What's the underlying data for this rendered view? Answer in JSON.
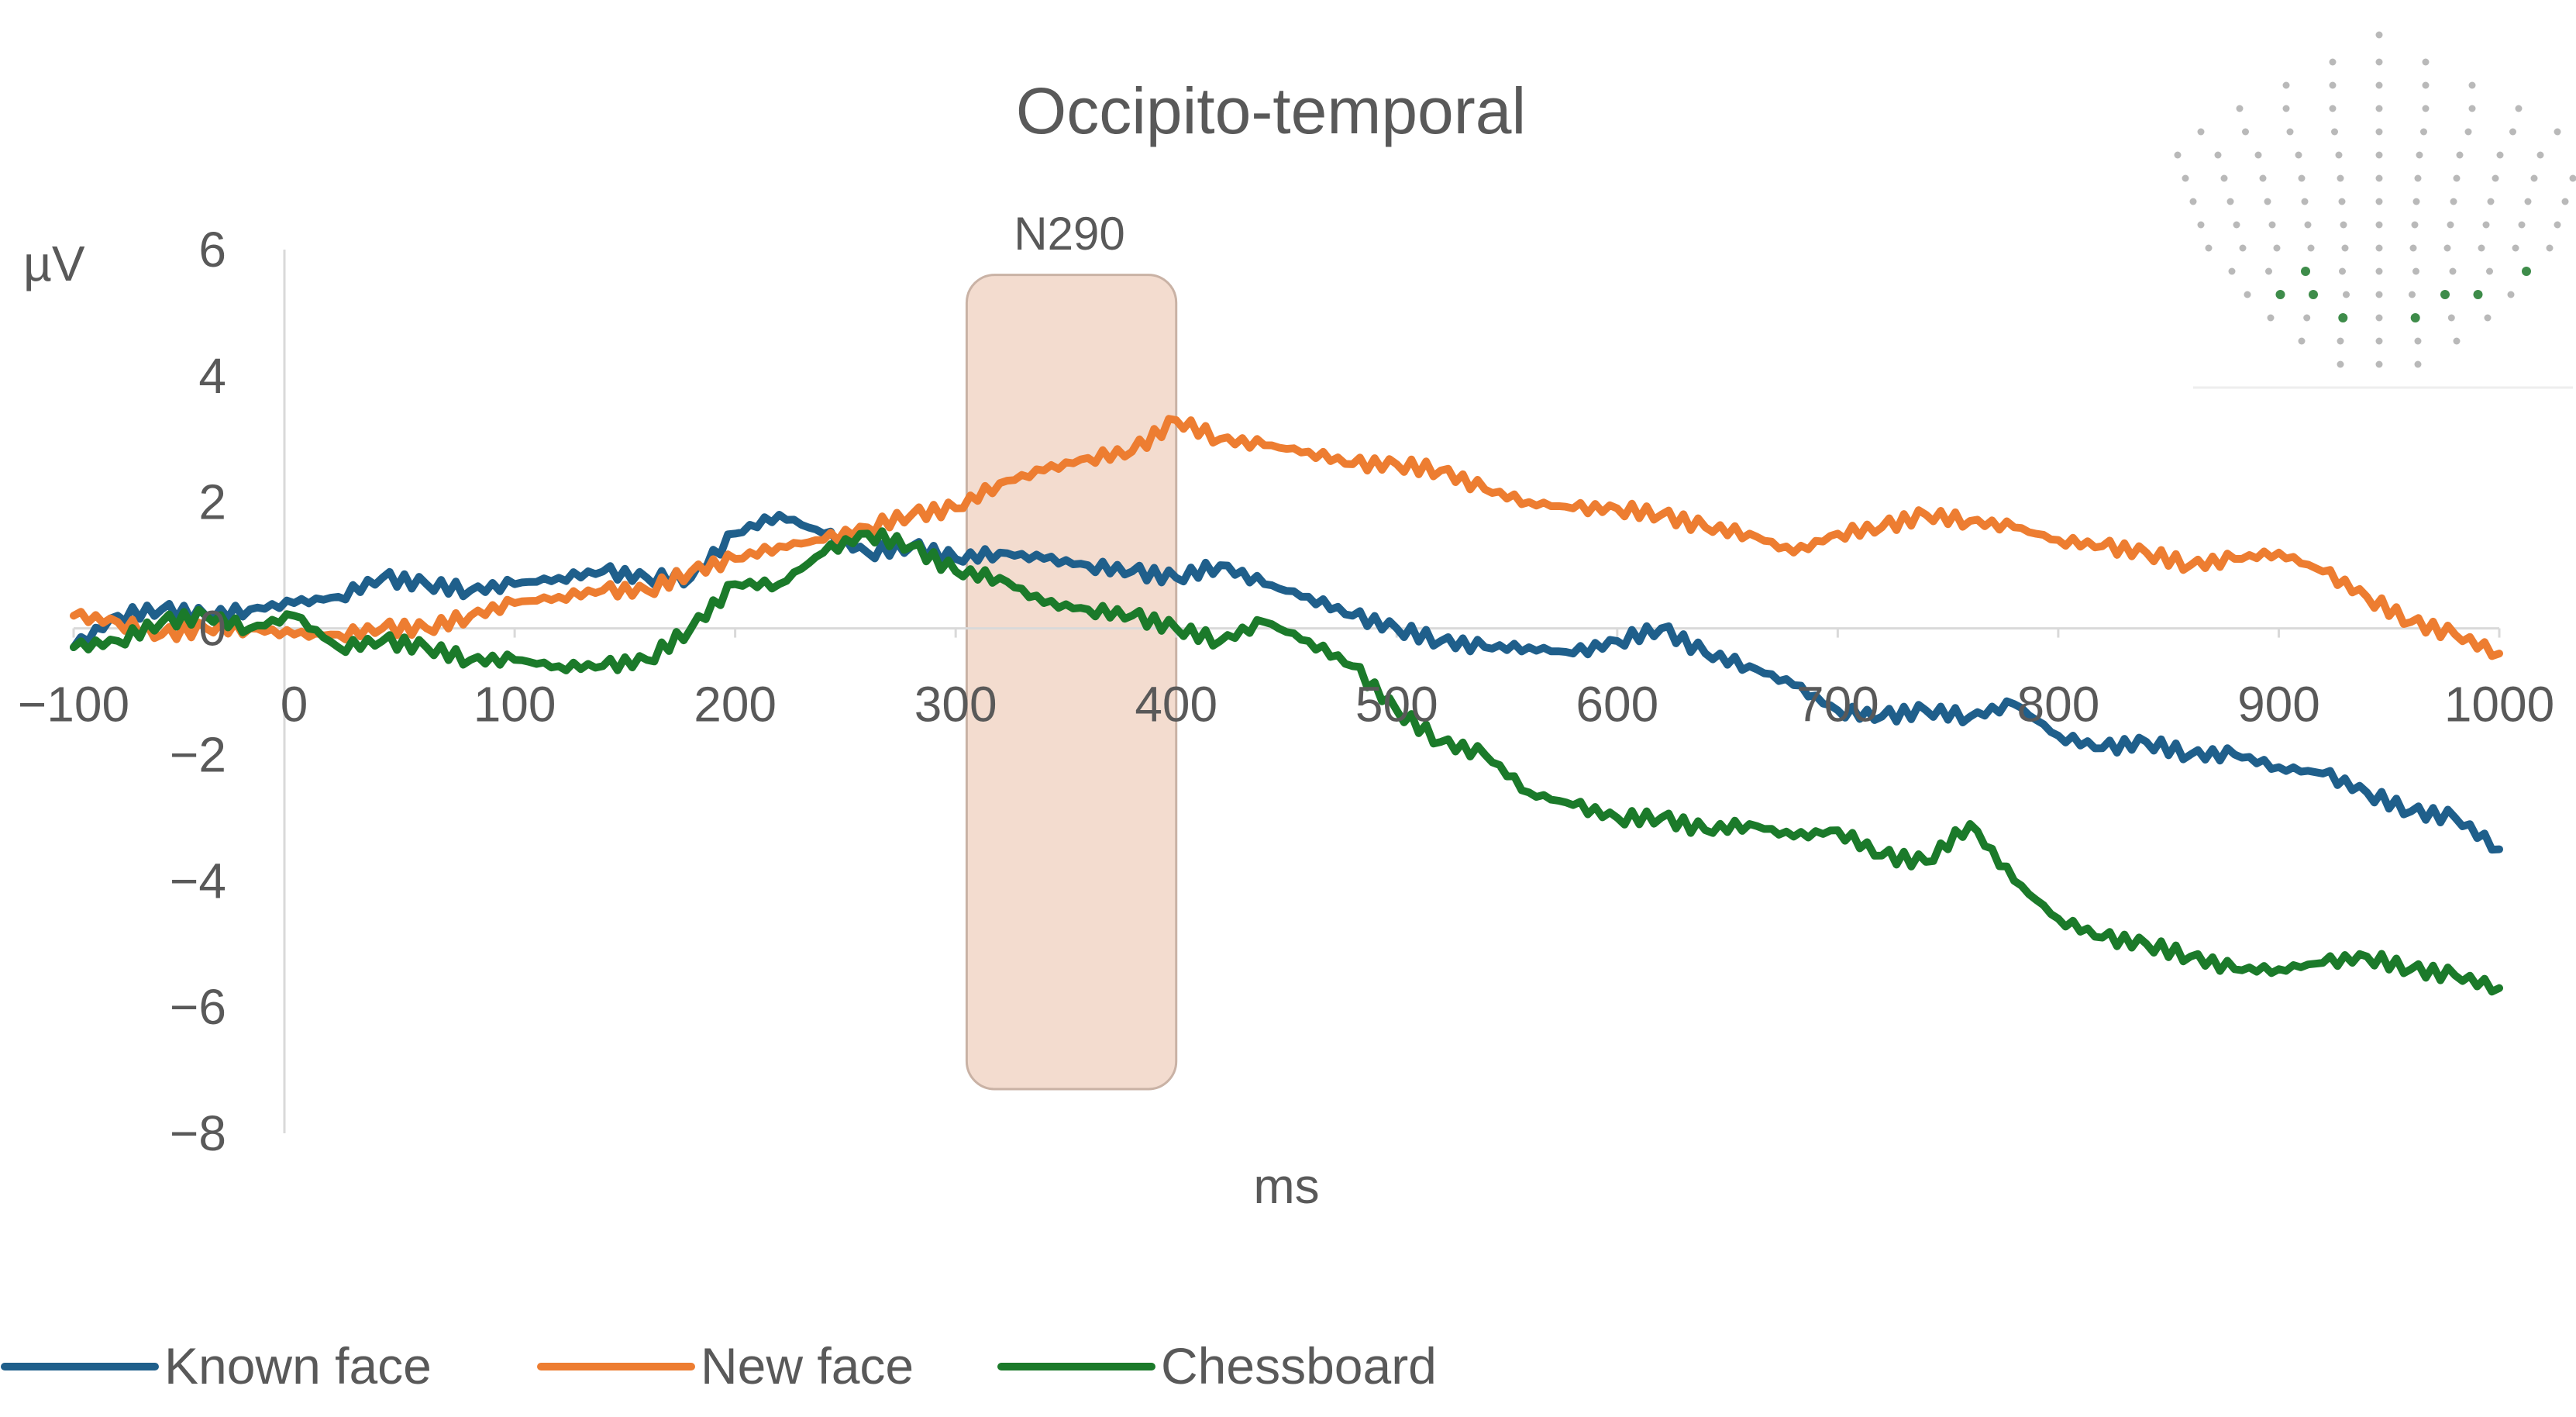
{
  "chart_data": {
    "type": "line",
    "title": "Occipito-temporal",
    "xlabel": "ms",
    "ylabel": "µV",
    "xlim": [
      -100,
      1000
    ],
    "ylim": [
      -8,
      6
    ],
    "x_ticks": [
      -100,
      0,
      100,
      200,
      300,
      400,
      500,
      600,
      700,
      800,
      900,
      1000
    ],
    "y_ticks": [
      6,
      4,
      2,
      0,
      -2,
      -4,
      -6,
      -8
    ],
    "x_tick_labels": [
      "−100",
      "0",
      "100",
      "200",
      "300",
      "400",
      "500",
      "600",
      "700",
      "800",
      "900",
      "1000"
    ],
    "y_tick_labels": [
      "6",
      "4",
      "2",
      "0",
      "−2",
      "−4",
      "−6",
      "−8"
    ],
    "grid": false,
    "legend_position": "bottom-left",
    "annotation": {
      "label": "N290",
      "x_range": [
        305,
        400
      ],
      "y_range": [
        -7.3,
        5.6
      ],
      "color": "#f3dccf",
      "border_color": "#c9b2a5"
    },
    "series": [
      {
        "name": "Known face",
        "color": "#1f5f8b",
        "x": [
          -100,
          -80,
          -60,
          -40,
          -20,
          0,
          20,
          40,
          60,
          80,
          100,
          120,
          140,
          160,
          180,
          200,
          220,
          240,
          260,
          280,
          300,
          320,
          340,
          360,
          380,
          400,
          420,
          440,
          460,
          480,
          500,
          520,
          540,
          560,
          580,
          600,
          620,
          640,
          660,
          680,
          700,
          720,
          740,
          760,
          780,
          800,
          820,
          840,
          860,
          880,
          900,
          920,
          940,
          960,
          980,
          1000
        ],
        "y": [
          -0.3,
          0.2,
          0.3,
          0.2,
          0.3,
          0.4,
          0.5,
          0.8,
          0.7,
          0.6,
          0.7,
          0.8,
          0.9,
          0.8,
          0.8,
          1.5,
          1.8,
          1.5,
          1.2,
          1.3,
          1.1,
          1.2,
          1.1,
          1.0,
          0.9,
          0.8,
          1.0,
          0.7,
          0.5,
          0.2,
          0.0,
          -0.2,
          -0.3,
          -0.3,
          -0.4,
          -0.2,
          0.0,
          -0.4,
          -0.6,
          -0.9,
          -1.3,
          -1.4,
          -1.3,
          -1.4,
          -1.2,
          -1.7,
          -1.9,
          -1.8,
          -2.0,
          -2.0,
          -2.2,
          -2.3,
          -2.6,
          -2.9,
          -3.0,
          -3.5
        ]
      },
      {
        "name": "New face",
        "color": "#ed7d31",
        "x": [
          -100,
          -80,
          -60,
          -40,
          -20,
          0,
          20,
          40,
          60,
          80,
          100,
          120,
          140,
          160,
          180,
          200,
          220,
          240,
          260,
          280,
          300,
          320,
          340,
          360,
          380,
          400,
          420,
          440,
          460,
          480,
          500,
          520,
          540,
          560,
          580,
          600,
          620,
          640,
          660,
          680,
          700,
          720,
          740,
          760,
          780,
          800,
          820,
          840,
          860,
          880,
          900,
          920,
          940,
          960,
          980,
          1000
        ],
        "y": [
          0.2,
          0.1,
          -0.1,
          0.0,
          0.0,
          -0.1,
          -0.1,
          0.0,
          0.0,
          0.2,
          0.4,
          0.5,
          0.6,
          0.6,
          0.9,
          1.1,
          1.3,
          1.4,
          1.6,
          1.8,
          1.9,
          2.3,
          2.5,
          2.7,
          2.8,
          3.3,
          3.0,
          2.9,
          2.8,
          2.6,
          2.6,
          2.5,
          2.2,
          2.0,
          1.9,
          1.9,
          1.8,
          1.6,
          1.5,
          1.2,
          1.5,
          1.6,
          1.8,
          1.7,
          1.6,
          1.4,
          1.3,
          1.2,
          1.0,
          1.1,
          1.2,
          0.9,
          0.5,
          0.1,
          -0.1,
          -0.4
        ]
      },
      {
        "name": "Chessboard",
        "color": "#1b7a2a",
        "x": [
          -100,
          -80,
          -60,
          -40,
          -20,
          0,
          20,
          40,
          60,
          80,
          100,
          120,
          140,
          160,
          180,
          200,
          220,
          240,
          260,
          280,
          300,
          320,
          340,
          360,
          380,
          400,
          420,
          440,
          460,
          480,
          500,
          520,
          540,
          560,
          580,
          600,
          620,
          640,
          660,
          680,
          700,
          720,
          740,
          760,
          780,
          800,
          820,
          840,
          860,
          880,
          900,
          920,
          940,
          960,
          980,
          1000
        ],
        "y": [
          -0.3,
          -0.2,
          0.1,
          0.2,
          0.0,
          0.2,
          -0.3,
          -0.2,
          -0.3,
          -0.5,
          -0.5,
          -0.6,
          -0.6,
          -0.5,
          0.0,
          0.7,
          0.7,
          1.2,
          1.5,
          1.3,
          0.9,
          0.8,
          0.4,
          0.3,
          0.2,
          0.0,
          -0.2,
          0.1,
          -0.2,
          -0.6,
          -1.3,
          -1.8,
          -2.0,
          -2.6,
          -2.8,
          -3.0,
          -3.0,
          -3.2,
          -3.1,
          -3.3,
          -3.2,
          -3.6,
          -3.7,
          -3.1,
          -4.0,
          -4.6,
          -4.9,
          -5.0,
          -5.2,
          -5.4,
          -5.4,
          -5.3,
          -5.2,
          -5.4,
          -5.5,
          -5.7
        ]
      }
    ]
  },
  "legend": [
    {
      "label": "Known face",
      "color": "#1f5f8b"
    },
    {
      "label": "New face",
      "color": "#ed7d31"
    },
    {
      "label": "Chessboard",
      "color": "#1b7a2a"
    }
  ],
  "inset": {
    "kind": "electrode-map",
    "dot_color": "#b9b9b9",
    "highlight_color": "#3e8c4a"
  }
}
